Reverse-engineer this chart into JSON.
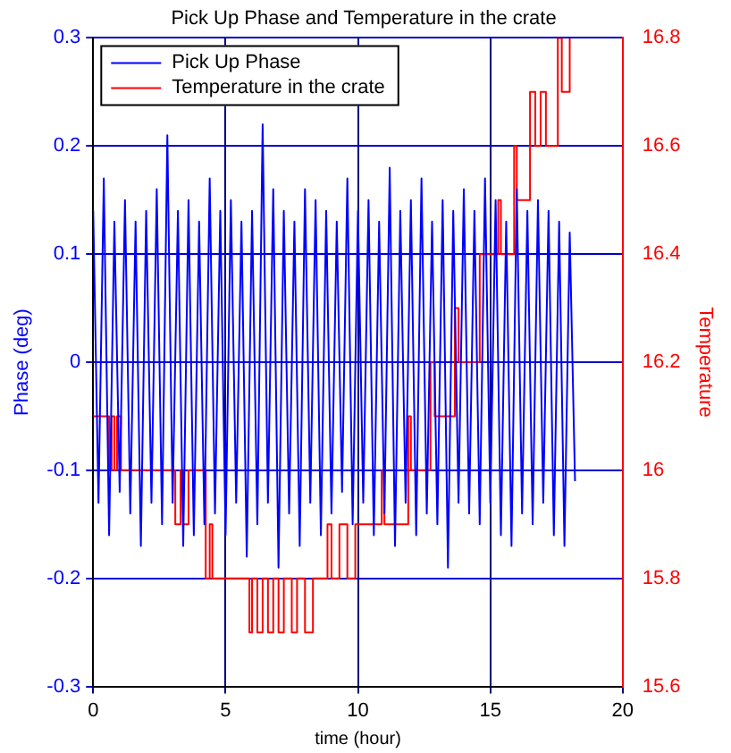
{
  "chart_data": {
    "type": "line",
    "title": "Pick Up Phase and Temperature in the crate",
    "xlabel": "time (hour)",
    "ylabel": "Phase (deg)",
    "y2label": "Temperature",
    "xlim": [
      0,
      20
    ],
    "xticks": [
      0,
      5,
      10,
      15,
      20
    ],
    "ylim": [
      -0.3,
      0.3
    ],
    "yticks": [
      -0.3,
      -0.2,
      -0.1,
      0,
      0.1,
      0.2,
      0.3
    ],
    "y2lim": [
      15.6,
      16.8
    ],
    "y2ticks": [
      15.6,
      15.8,
      16,
      16.2,
      16.4,
      16.6,
      16.8
    ],
    "grid": true,
    "legend": "top left",
    "marker": "none",
    "line_style": "solid",
    "series": [
      {
        "name": "Pick Up Phase",
        "color": "#0000ff",
        "type": "line",
        "x": [
          0,
          0.2,
          0.4,
          0.6,
          0.8,
          1,
          1.2,
          1.4,
          1.6,
          1.8,
          2,
          2.2,
          2.4,
          2.6,
          2.8,
          3,
          3.2,
          3.4,
          3.6,
          3.8,
          4,
          4.2,
          4.4,
          4.6,
          4.8,
          5,
          5.2,
          5.4,
          5.6,
          5.8,
          6,
          6.2,
          6.4,
          6.6,
          6.8,
          7,
          7.2,
          7.4,
          7.6,
          7.8,
          8,
          8.2,
          8.4,
          8.6,
          8.8,
          9,
          9.2,
          9.4,
          9.6,
          9.8,
          10,
          10.2,
          10.4,
          10.6,
          10.8,
          11,
          11.2,
          11.4,
          11.6,
          11.8,
          12,
          12.2,
          12.4,
          12.6,
          12.8,
          13,
          13.2,
          13.4,
          13.6,
          13.8,
          14,
          14.2,
          14.4,
          14.6,
          14.8,
          15,
          15.2,
          15.4,
          15.6,
          15.8,
          16,
          16.2,
          16.4,
          16.6,
          16.8,
          17,
          17.2,
          17.4,
          17.6,
          17.8,
          18,
          18.2
        ],
        "values": [
          0.14,
          -0.13,
          0.17,
          -0.16,
          0.13,
          -0.12,
          0.15,
          -0.14,
          0.13,
          -0.17,
          0.14,
          -0.13,
          0.16,
          -0.15,
          0.21,
          -0.13,
          0.14,
          -0.17,
          0.15,
          -0.16,
          0.13,
          -0.15,
          0.17,
          -0.14,
          0.14,
          -0.16,
          0.15,
          -0.13,
          0.13,
          -0.18,
          0.14,
          -0.15,
          0.22,
          -0.13,
          0.16,
          -0.19,
          0.14,
          -0.14,
          0.13,
          -0.17,
          0.16,
          -0.13,
          0.15,
          -0.16,
          0.14,
          -0.14,
          0.13,
          -0.12,
          0.17,
          -0.15,
          0.14,
          -0.13,
          0.15,
          -0.16,
          0.13,
          -0.14,
          0.18,
          -0.17,
          0.14,
          -0.13,
          0.15,
          -0.16,
          0.17,
          -0.14,
          0.13,
          -0.15,
          0.15,
          -0.19,
          0.14,
          -0.13,
          0.16,
          -0.14,
          0.14,
          -0.15,
          0.17,
          -0.13,
          0.15,
          -0.16,
          0.13,
          -0.17,
          0.16,
          -0.14,
          0.14,
          -0.15,
          0.15,
          -0.13,
          0.14,
          -0.16,
          0.13,
          -0.17,
          0.12,
          -0.11
        ]
      },
      {
        "name": "Temperature in the crate",
        "color": "#ff0000",
        "type": "step",
        "axis": "y2",
        "x": [
          0,
          0.6,
          0.7,
          0.8,
          0.9,
          1.05,
          3.1,
          3.3,
          3.4,
          3.6,
          4.25,
          4.4,
          4.5,
          5.9,
          6.0,
          6.2,
          6.4,
          6.6,
          6.8,
          7.0,
          7.2,
          7.5,
          7.7,
          8.0,
          8.3,
          8.85,
          9.0,
          9.3,
          9.6,
          9.9,
          10.9,
          11.0,
          11.9,
          12.0,
          12.74,
          12.9,
          13.66,
          13.8,
          14.6,
          15.3,
          15.4,
          15.9,
          16.0,
          16.5,
          16.7,
          16.9,
          17.1,
          17.55,
          17.7,
          18.0
        ],
        "values": [
          16.1,
          16.0,
          16.1,
          16.0,
          16.1,
          16.0,
          15.9,
          16.0,
          15.9,
          16.0,
          15.8,
          15.9,
          15.8,
          15.7,
          15.8,
          15.7,
          15.8,
          15.7,
          15.8,
          15.7,
          15.8,
          15.7,
          15.8,
          15.7,
          15.8,
          15.9,
          15.8,
          15.9,
          15.8,
          15.9,
          16.0,
          15.9,
          16.1,
          16.0,
          16.2,
          16.1,
          16.3,
          16.2,
          16.4,
          16.5,
          16.4,
          16.6,
          16.5,
          16.7,
          16.6,
          16.7,
          16.6,
          16.8,
          16.7,
          16.8
        ]
      }
    ]
  }
}
